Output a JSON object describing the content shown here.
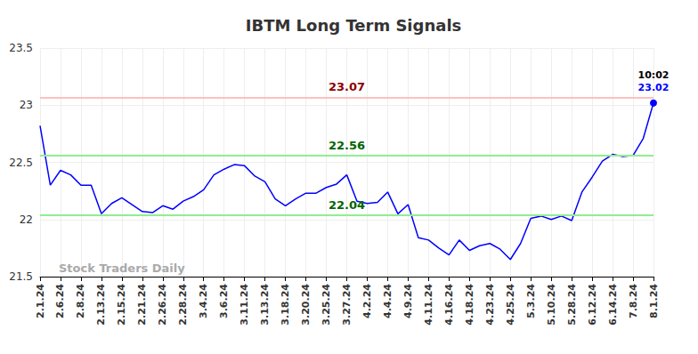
{
  "chart_data": {
    "type": "line",
    "title": "IBTM Long Term Signals",
    "watermark": "Stock Traders Daily",
    "categories": [
      "2.1.24",
      null,
      "2.6.24",
      null,
      "2.8.24",
      null,
      "2.13.24",
      null,
      "2.15.24",
      null,
      "2.21.24",
      null,
      "2.26.24",
      null,
      "2.28.24",
      null,
      "3.4.24",
      null,
      "3.6.24",
      null,
      "3.11.24",
      null,
      "3.13.24",
      null,
      "3.18.24",
      null,
      "3.20.24",
      null,
      "3.25.24",
      null,
      "3.27.24",
      null,
      "4.2.24",
      null,
      "4.4.24",
      null,
      "4.9.24",
      null,
      "4.11.24",
      null,
      "4.16.24",
      null,
      "4.18.24",
      null,
      "4.23.24",
      null,
      "4.25.24",
      null,
      "5.3.24",
      null,
      "5.10.24",
      null,
      "5.28.24",
      null,
      "6.12.24",
      null,
      "6.14.24",
      null,
      "7.8.24",
      null,
      "8.1.24"
    ],
    "values": [
      22.82,
      22.3,
      22.43,
      22.39,
      22.3,
      22.3,
      22.05,
      22.14,
      22.19,
      22.13,
      22.07,
      22.06,
      22.12,
      22.09,
      22.16,
      22.2,
      22.26,
      22.39,
      22.44,
      22.48,
      22.47,
      22.38,
      22.33,
      22.18,
      22.12,
      22.18,
      22.23,
      22.23,
      22.28,
      22.31,
      22.39,
      22.16,
      22.14,
      22.15,
      22.24,
      22.05,
      22.13,
      21.84,
      21.82,
      21.75,
      21.69,
      21.82,
      21.73,
      21.77,
      21.79,
      21.74,
      21.65,
      21.79,
      22.01,
      22.03,
      22.0,
      22.03,
      21.99,
      22.24,
      22.37,
      22.51,
      22.57,
      22.55,
      22.56,
      22.71,
      23.02
    ],
    "color": "#0000ff",
    "last_point_annotation": "10:02",
    "reference_lines": [
      {
        "value": 23.07,
        "label": "23.07",
        "color": "#ffc0c0",
        "label_color": "#8b0000"
      },
      {
        "value": 22.56,
        "label": "22.56",
        "color": "#90ee90",
        "label_color": "#006400"
      },
      {
        "value": 22.04,
        "label": "22.04",
        "color": "#90ee90",
        "label_color": "#006400"
      }
    ],
    "ylim": [
      21.5,
      23.5
    ],
    "yticks": [
      21.5,
      22,
      22.5,
      23,
      23.5
    ],
    "grid": true
  }
}
